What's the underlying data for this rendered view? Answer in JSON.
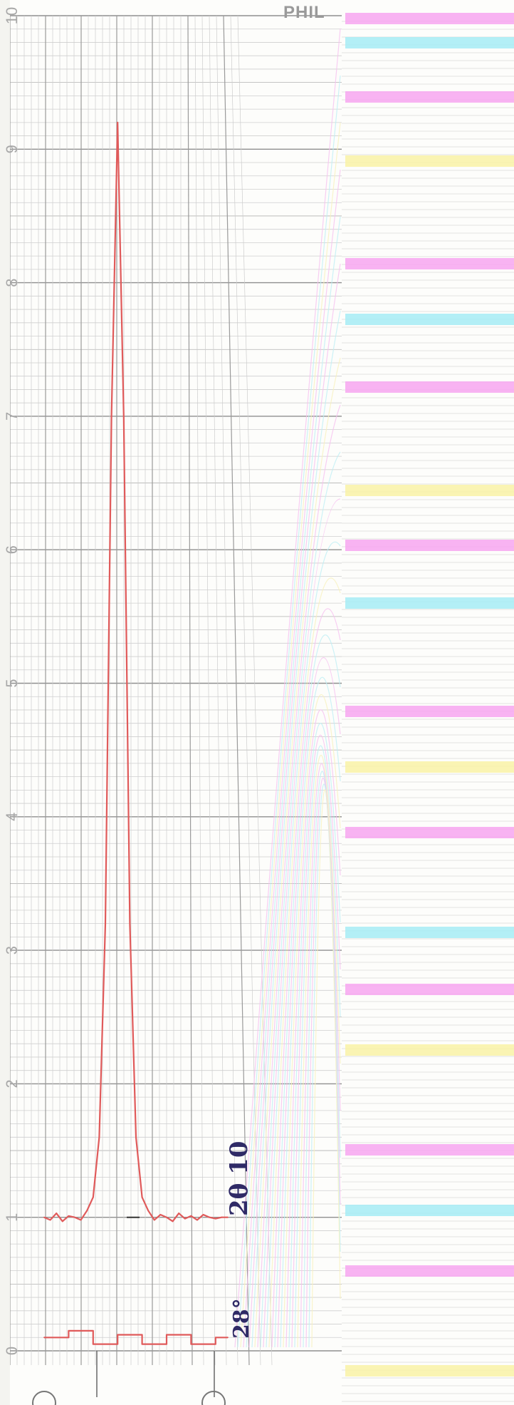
{
  "chart_data": {
    "type": "line",
    "brand_text": "PHIL",
    "y_ticks": [
      "0",
      "1",
      "2",
      "3",
      "4",
      "5",
      "6",
      "7",
      "8",
      "9",
      "10"
    ],
    "ylim": [
      0,
      10
    ],
    "grid": true,
    "annotations": [
      "2θ 10",
      "28°"
    ],
    "series": [
      {
        "color": "#e05a5a",
        "x": [
          0,
          1,
          2,
          3,
          4,
          5,
          6,
          7,
          8,
          9,
          10,
          11,
          12,
          13,
          14,
          15,
          16,
          17,
          18,
          19,
          20,
          21,
          22,
          23,
          24,
          25,
          26,
          27,
          28,
          29,
          30
        ],
        "y": [
          1.0,
          0.98,
          1.03,
          0.97,
          1.01,
          1.0,
          0.98,
          1.05,
          1.15,
          1.6,
          3.2,
          7.0,
          9.2,
          7.0,
          3.2,
          1.6,
          1.15,
          1.05,
          0.98,
          1.02,
          1.0,
          0.97,
          1.03,
          0.99,
          1.01,
          0.98,
          1.02,
          1.0,
          0.99,
          1.0,
          1.0
        ]
      },
      {
        "color": "#e05a5a",
        "x": [
          0,
          4,
          4,
          8,
          8,
          12,
          12,
          16,
          16,
          20,
          20,
          24,
          24,
          28,
          28,
          30
        ],
        "y": [
          0.1,
          0.1,
          0.15,
          0.15,
          0.05,
          0.05,
          0.12,
          0.12,
          0.05,
          0.05,
          0.12,
          0.12,
          0.05,
          0.05,
          0.1,
          0.1
        ]
      }
    ]
  }
}
